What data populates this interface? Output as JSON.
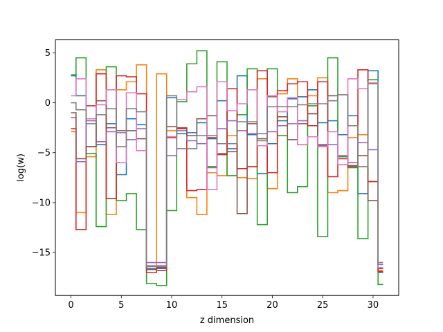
{
  "chart_data": {
    "type": "line",
    "step": "mid",
    "xlabel": "z dimension",
    "ylabel": "log(w)",
    "xlim": [
      -1.55,
      32.55
    ],
    "ylim": [
      -19.3,
      6.3
    ],
    "xticks": [
      0,
      5,
      10,
      15,
      20,
      25,
      30
    ],
    "yticks": [
      -15,
      -10,
      -5,
      0,
      5
    ],
    "tick_labels_x": [
      "0",
      "5",
      "10",
      "15",
      "20",
      "25",
      "30"
    ],
    "tick_labels_y": [
      "−15",
      "−10",
      "−5",
      "0",
      "5"
    ],
    "grid": false,
    "legend": "none",
    "x": [
      0,
      1,
      2,
      3,
      4,
      5,
      6,
      7,
      8,
      9,
      10,
      11,
      12,
      13,
      14,
      15,
      16,
      17,
      18,
      19,
      20,
      21,
      22,
      23,
      24,
      25,
      26,
      27,
      28,
      29,
      30,
      31
    ],
    "series": [
      {
        "color": "#1f77b4",
        "values": [
          2.8,
          0.7,
          -4.4,
          -4.2,
          -2.1,
          -7.2,
          -1.6,
          -2.2,
          -16.6,
          -16.6,
          0.5,
          -3.1,
          -3.0,
          -2.0,
          -3.6,
          0.2,
          -4.6,
          2.7,
          -3.2,
          -7.1,
          -4.1,
          -1.8,
          0.4,
          0.6,
          1.3,
          -2.0,
          -1.8,
          -3.2,
          -1.3,
          -9.1,
          3.2,
          -17.0
        ]
      },
      {
        "color": "#ff7f0e",
        "values": [
          -2.9,
          -11.0,
          -5.4,
          3.3,
          -11.2,
          1.3,
          2.1,
          3.8,
          -16.7,
          2.9,
          -2.8,
          -2.5,
          -9.5,
          -11.2,
          -7.0,
          -7.3,
          -3.3,
          -7.5,
          -7.6,
          2.4,
          -8.6,
          0.9,
          2.4,
          -4.2,
          0.7,
          2.5,
          -9.0,
          -8.8,
          -3.5,
          -3.2,
          -7.9,
          -16.8
        ]
      },
      {
        "color": "#2ca02c",
        "values": [
          2.7,
          4.5,
          -5.1,
          -12.4,
          3.6,
          -9.8,
          -9.1,
          -12.7,
          -18.1,
          -18.3,
          -10.8,
          0.1,
          3.9,
          5.2,
          -6.4,
          4.1,
          -7.3,
          -1.2,
          3.4,
          -12.2,
          3.4,
          -3.3,
          -9.0,
          -8.4,
          -0.3,
          -13.4,
          4.5,
          -5.4,
          -6.5,
          -13.6,
          2.3,
          -18.2
        ]
      },
      {
        "color": "#d62728",
        "values": [
          -2.6,
          -12.7,
          -0.3,
          2.9,
          -9.6,
          2.7,
          2.6,
          0.9,
          -17.0,
          -16.8,
          -3.5,
          -2.6,
          -8.8,
          -8.7,
          -3.5,
          -5.2,
          1.4,
          -6.6,
          -6.4,
          3.2,
          -7.0,
          1.2,
          1.9,
          2.1,
          -2.3,
          2.1,
          -7.4,
          -5.6,
          -6.3,
          3.3,
          -7.9,
          -16.9
        ]
      },
      {
        "color": "#9467bd",
        "values": [
          -1.5,
          -5.9,
          -1.8,
          -3.9,
          -2.9,
          -3.0,
          -3.7,
          -2.6,
          -16.0,
          -16.0,
          -5.3,
          -2.8,
          -3.8,
          -4.1,
          -6.5,
          -2.6,
          -1.8,
          -2.8,
          -3.1,
          -3.1,
          -2.9,
          -2.3,
          -2.1,
          -1.8,
          -1.1,
          -4.3,
          -4.2,
          -5.3,
          -6.0,
          -4.0,
          -4.7,
          -16.0
        ]
      },
      {
        "color": "#8c564b",
        "values": [
          -1.0,
          -5.6,
          -4.4,
          0.2,
          -2.5,
          -2.8,
          -2.8,
          -3.6,
          -16.7,
          -16.5,
          -2.4,
          -2.5,
          -3.3,
          -1.6,
          -1.3,
          -5.1,
          -4.9,
          -11.1,
          -2.1,
          -3.6,
          0.6,
          -1.4,
          -3.7,
          -2.1,
          -1.1,
          -4.2,
          0.7,
          0.8,
          -6.4,
          -5.3,
          -9.8,
          -16.6
        ]
      },
      {
        "color": "#e377c2",
        "values": [
          0.7,
          2.4,
          -1.6,
          -0.2,
          1.3,
          -6.0,
          1.0,
          -4.8,
          -16.3,
          -16.3,
          -3.4,
          0.3,
          1.1,
          1.6,
          -8.7,
          2.1,
          -0.8,
          -0.1,
          1.3,
          -4.3,
          0.7,
          -0.9,
          0.5,
          -4.2,
          -3.4,
          -4.4,
          -2.9,
          -6.2,
          2.4,
          1.4,
          2.0,
          -16.5
        ]
      },
      {
        "color": "#7f7f7f",
        "values": [
          0.0,
          -0.7,
          -2.1,
          -1.2,
          -0.6,
          -4.4,
          -0.6,
          -0.9,
          -16.4,
          -16.4,
          0.7,
          -4.6,
          -4.6,
          -3.3,
          -3.3,
          -4.1,
          -4.1,
          -1.9,
          -1.9,
          -3.8,
          -0.4,
          -0.4,
          -0.4,
          -0.2,
          -0.1,
          -0.1,
          0.2,
          0.8,
          -2.3,
          -6.4,
          1.9,
          -16.2
        ]
      }
    ]
  }
}
